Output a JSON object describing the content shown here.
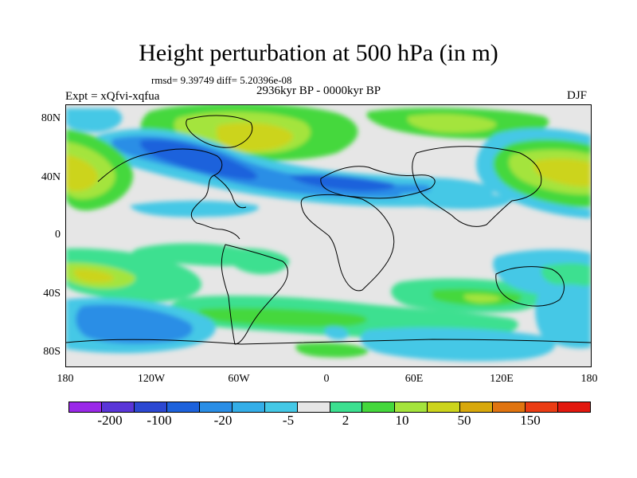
{
  "title": "Height perturbation at 500 hPa (in m)",
  "stats_line": "rmsd= 9.39749 diff= 5.20396e-08",
  "period": "2936kyr BP - 0000kyr BP",
  "experiment": "Expt = xQfvi-xqfua",
  "season": "DJF",
  "lat_labels": [
    "80N",
    "40N",
    "0",
    "40S",
    "80S"
  ],
  "lon_labels": [
    "180",
    "120W",
    "60W",
    "0",
    "60E",
    "120E",
    "180"
  ],
  "colorbar": {
    "colors": [
      "#9a28e8",
      "#5a36d8",
      "#2c48d2",
      "#1d62dc",
      "#2a8ee6",
      "#34aee8",
      "#44c8e6",
      "#e6e6e6",
      "#3ce090",
      "#44d83c",
      "#a4e43c",
      "#ccd41c",
      "#d8a80c",
      "#e07410",
      "#ea3c14",
      "#e2180e"
    ],
    "labels": [
      "-200",
      "-100",
      "-20",
      "-5",
      "2",
      "10",
      "50",
      "150"
    ]
  }
}
